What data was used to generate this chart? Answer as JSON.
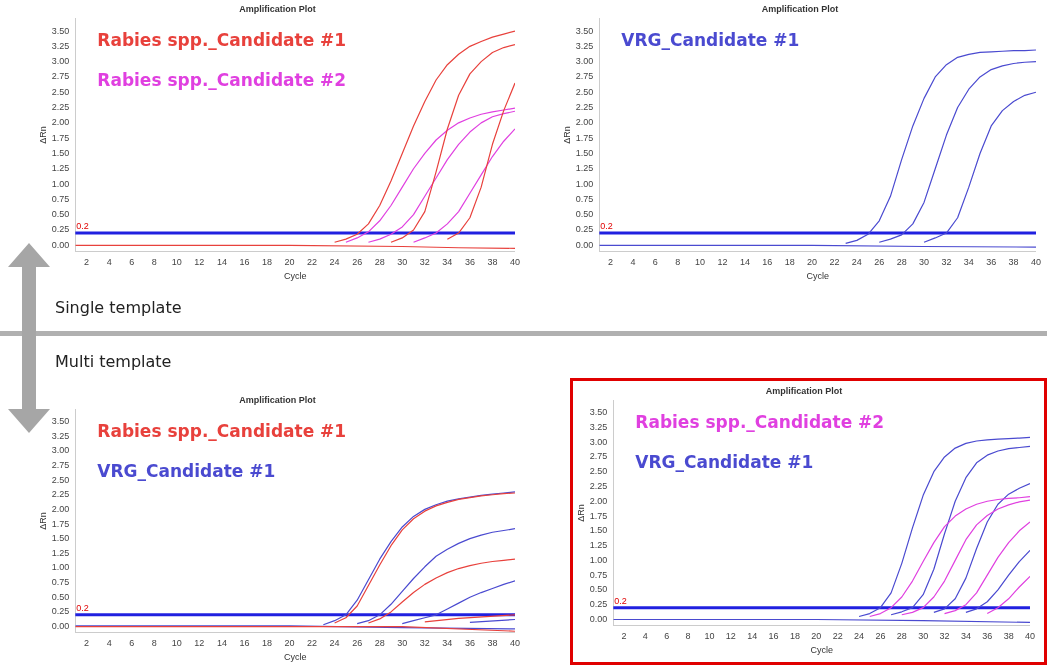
{
  "chart_data": [
    {
      "type": "line",
      "title": "Amplification Plot",
      "xlabel": "Cycle",
      "ylabel": "ΔRn",
      "xlim": [
        1,
        40
      ],
      "ylim": [
        -0.1,
        3.7
      ],
      "xticks": [
        2,
        4,
        6,
        8,
        10,
        12,
        14,
        16,
        18,
        20,
        22,
        24,
        26,
        28,
        30,
        32,
        34,
        36,
        38,
        40
      ],
      "yticks": [
        {
          "value": 0,
          "label": "0.00"
        },
        {
          "value": 0.25,
          "label": "0.25"
        },
        {
          "value": 0.5,
          "label": "0.50"
        },
        {
          "value": 0.75,
          "label": "0.75"
        },
        {
          "value": 1,
          "label": "1.00"
        },
        {
          "value": 1.25,
          "label": "1.25"
        },
        {
          "value": 1.5,
          "label": "1.50"
        },
        {
          "value": 1.75,
          "label": "1.75"
        },
        {
          "value": 2,
          "label": "2.00"
        },
        {
          "value": 2.25,
          "label": "2.25"
        },
        {
          "value": 2.5,
          "label": "2.50"
        },
        {
          "value": 2.75,
          "label": "2.75"
        },
        {
          "value": 3,
          "label": "3.00"
        },
        {
          "value": 3.25,
          "label": "3.25"
        },
        {
          "value": 3.5,
          "label": "3.50"
        }
      ],
      "marker": "none",
      "line_style": "solid",
      "grid": false,
      "annotations": [
        "Single template"
      ],
      "ref_lines": [
        {
          "axis": "y",
          "value": 0.2,
          "label": "0.2",
          "color": "#2020e0"
        }
      ],
      "series": [
        {
          "name": "Rabies spp._Candidate #1",
          "color": "#e8413c",
          "x": [
            24,
            25,
            26,
            27,
            28,
            29,
            30,
            31,
            32,
            33,
            34,
            35,
            36,
            37,
            38,
            39,
            40
          ],
          "values": [
            0.05,
            0.1,
            0.18,
            0.35,
            0.65,
            1.05,
            1.5,
            1.95,
            2.35,
            2.7,
            2.95,
            3.12,
            3.25,
            3.33,
            3.4,
            3.45,
            3.5
          ]
        },
        {
          "color": "#e8413c",
          "x": [
            29,
            30,
            31,
            32,
            33,
            34,
            35,
            36,
            37,
            38,
            39,
            40
          ],
          "values": [
            0.05,
            0.12,
            0.25,
            0.55,
            1.2,
            1.9,
            2.45,
            2.8,
            3.0,
            3.15,
            3.23,
            3.28
          ]
        },
        {
          "color": "#e8413c",
          "x": [
            34,
            35,
            36,
            37,
            38,
            39,
            40
          ],
          "values": [
            0.1,
            0.2,
            0.45,
            0.95,
            1.65,
            2.2,
            2.65
          ]
        },
        {
          "color": "#e8413c",
          "x": [
            1,
            10,
            20,
            30,
            35,
            40
          ],
          "values": [
            0,
            0,
            0,
            -0.02,
            -0.04,
            -0.05
          ]
        },
        {
          "name": "Rabies spp._Candidate #2",
          "color": "#e040e0",
          "x": [
            25,
            26,
            27,
            28,
            29,
            30,
            31,
            32,
            33,
            34,
            35,
            36,
            37,
            38,
            39,
            40
          ],
          "values": [
            0.05,
            0.12,
            0.22,
            0.4,
            0.65,
            0.95,
            1.25,
            1.5,
            1.72,
            1.88,
            2.0,
            2.08,
            2.14,
            2.18,
            2.21,
            2.24
          ]
        },
        {
          "color": "#e040e0",
          "x": [
            27,
            28,
            29,
            30,
            31,
            32,
            33,
            34,
            35,
            36,
            37,
            38,
            39,
            40
          ],
          "values": [
            0.05,
            0.1,
            0.18,
            0.3,
            0.5,
            0.8,
            1.1,
            1.4,
            1.65,
            1.85,
            2.0,
            2.1,
            2.15,
            2.19
          ]
        },
        {
          "color": "#e040e0",
          "x": [
            31,
            32,
            33,
            34,
            35,
            36,
            37,
            38,
            39,
            40
          ],
          "values": [
            0.05,
            0.12,
            0.2,
            0.35,
            0.55,
            0.85,
            1.15,
            1.45,
            1.7,
            1.9
          ]
        }
      ]
    },
    {
      "type": "line",
      "title": "Amplification Plot",
      "xlabel": "Cycle",
      "ylabel": "ΔRn",
      "xlim": [
        1,
        40
      ],
      "ylim": [
        -0.1,
        3.7
      ],
      "xticks": [
        2,
        4,
        6,
        8,
        10,
        12,
        14,
        16,
        18,
        20,
        22,
        24,
        26,
        28,
        30,
        32,
        34,
        36,
        38,
        40
      ],
      "yticks": [
        {
          "value": 0,
          "label": "0.00"
        },
        {
          "value": 0.25,
          "label": "0.25"
        },
        {
          "value": 0.5,
          "label": "0.50"
        },
        {
          "value": 0.75,
          "label": "0.75"
        },
        {
          "value": 1,
          "label": "1.00"
        },
        {
          "value": 1.25,
          "label": "1.25"
        },
        {
          "value": 1.5,
          "label": "1.50"
        },
        {
          "value": 1.75,
          "label": "1.75"
        },
        {
          "value": 2,
          "label": "2.00"
        },
        {
          "value": 2.25,
          "label": "2.25"
        },
        {
          "value": 2.5,
          "label": "2.50"
        },
        {
          "value": 2.75,
          "label": "2.75"
        },
        {
          "value": 3,
          "label": "3.00"
        },
        {
          "value": 3.25,
          "label": "3.25"
        },
        {
          "value": 3.5,
          "label": "3.50"
        }
      ],
      "marker": "none",
      "line_style": "solid",
      "grid": false,
      "ref_lines": [
        {
          "axis": "y",
          "value": 0.2,
          "label": "0.2",
          "color": "#2020e0"
        }
      ],
      "series": [
        {
          "name": "VRG_Candidate #1",
          "color": "#4a4ad0",
          "x": [
            23,
            24,
            25,
            26,
            27,
            28,
            29,
            30,
            31,
            32,
            33,
            34,
            35,
            36,
            37,
            38,
            39,
            40
          ],
          "values": [
            0.03,
            0.08,
            0.18,
            0.4,
            0.8,
            1.4,
            1.95,
            2.4,
            2.75,
            2.95,
            3.07,
            3.12,
            3.15,
            3.16,
            3.17,
            3.18,
            3.18,
            3.19
          ]
        },
        {
          "color": "#4a4ad0",
          "x": [
            26,
            27,
            28,
            29,
            30,
            31,
            32,
            33,
            34,
            35,
            36,
            37,
            38,
            39,
            40
          ],
          "values": [
            0.05,
            0.1,
            0.17,
            0.35,
            0.7,
            1.25,
            1.8,
            2.25,
            2.55,
            2.75,
            2.87,
            2.93,
            2.97,
            2.99,
            3.0
          ]
        },
        {
          "color": "#4a4ad0",
          "x": [
            30,
            31,
            32,
            33,
            34,
            35,
            36,
            37,
            38,
            39,
            40
          ],
          "values": [
            0.05,
            0.12,
            0.2,
            0.45,
            0.95,
            1.5,
            1.95,
            2.2,
            2.35,
            2.45,
            2.5
          ]
        },
        {
          "color": "#4a4ad0",
          "x": [
            1,
            10,
            20,
            30,
            40
          ],
          "values": [
            0,
            0,
            0,
            -0.02,
            -0.03
          ]
        }
      ]
    },
    {
      "type": "line",
      "title": "Amplification Plot",
      "xlabel": "Cycle",
      "ylabel": "ΔRn",
      "xlim": [
        1,
        40
      ],
      "ylim": [
        -0.1,
        3.7
      ],
      "xticks": [
        2,
        4,
        6,
        8,
        10,
        12,
        14,
        16,
        18,
        20,
        22,
        24,
        26,
        28,
        30,
        32,
        34,
        36,
        38,
        40
      ],
      "yticks": [
        {
          "value": 0,
          "label": "0.00"
        },
        {
          "value": 0.25,
          "label": "0.25"
        },
        {
          "value": 0.5,
          "label": "0.50"
        },
        {
          "value": 0.75,
          "label": "0.75"
        },
        {
          "value": 1,
          "label": "1.00"
        },
        {
          "value": 1.25,
          "label": "1.25"
        },
        {
          "value": 1.5,
          "label": "1.50"
        },
        {
          "value": 1.75,
          "label": "1.75"
        },
        {
          "value": 2,
          "label": "2.00"
        },
        {
          "value": 2.25,
          "label": "2.25"
        },
        {
          "value": 2.5,
          "label": "2.50"
        },
        {
          "value": 2.75,
          "label": "2.75"
        },
        {
          "value": 3,
          "label": "3.00"
        },
        {
          "value": 3.25,
          "label": "3.25"
        },
        {
          "value": 3.5,
          "label": "3.50"
        }
      ],
      "marker": "none",
      "line_style": "solid",
      "grid": false,
      "annotations": [
        "Multi template"
      ],
      "ref_lines": [
        {
          "axis": "y",
          "value": 0.2,
          "label": "0.2",
          "color": "#2020e0"
        }
      ],
      "series": [
        {
          "name": "Rabies spp._Candidate #1",
          "color": "#e8413c",
          "x": [
            24,
            25,
            26,
            27,
            28,
            29,
            30,
            31,
            32,
            33,
            34,
            35,
            36,
            37,
            38,
            39,
            40
          ],
          "values": [
            0.06,
            0.15,
            0.35,
            0.7,
            1.05,
            1.38,
            1.65,
            1.84,
            1.97,
            2.06,
            2.12,
            2.17,
            2.2,
            2.23,
            2.25,
            2.27,
            2.28
          ]
        },
        {
          "color": "#e8413c",
          "x": [
            27,
            28,
            29,
            30,
            31,
            32,
            33,
            34,
            35,
            36,
            37,
            38,
            39,
            40
          ],
          "values": [
            0.06,
            0.13,
            0.25,
            0.42,
            0.58,
            0.72,
            0.83,
            0.92,
            0.99,
            1.04,
            1.08,
            1.11,
            1.13,
            1.15
          ]
        },
        {
          "color": "#e8413c",
          "x": [
            32,
            35,
            40
          ],
          "values": [
            0.08,
            0.14,
            0.2
          ]
        },
        {
          "color": "#e8413c",
          "x": [
            1,
            10,
            20,
            30,
            40
          ],
          "values": [
            0,
            0,
            0,
            0,
            -0.08
          ]
        },
        {
          "name": "VRG_Candidate #1",
          "color": "#4a4ad0",
          "x": [
            23,
            24,
            25,
            26,
            27,
            28,
            29,
            30,
            31,
            32,
            33,
            34,
            35,
            36,
            37,
            38,
            39,
            40
          ],
          "values": [
            0.03,
            0.1,
            0.2,
            0.45,
            0.8,
            1.15,
            1.45,
            1.7,
            1.88,
            2.0,
            2.08,
            2.14,
            2.18,
            2.21,
            2.24,
            2.26,
            2.28,
            2.3
          ]
        },
        {
          "color": "#4a4ad0",
          "x": [
            26,
            27,
            28,
            29,
            30,
            31,
            32,
            33,
            34,
            35,
            36,
            37,
            38,
            39,
            40
          ],
          "values": [
            0.05,
            0.1,
            0.2,
            0.38,
            0.6,
            0.82,
            1.02,
            1.2,
            1.32,
            1.42,
            1.5,
            1.56,
            1.61,
            1.64,
            1.67
          ]
        },
        {
          "color": "#4a4ad0",
          "x": [
            30,
            31,
            32,
            33,
            34,
            35,
            36,
            37,
            38,
            39,
            40
          ],
          "values": [
            0.05,
            0.1,
            0.15,
            0.2,
            0.3,
            0.4,
            0.5,
            0.58,
            0.65,
            0.72,
            0.78
          ]
        },
        {
          "color": "#4a4ad0",
          "x": [
            36,
            40
          ],
          "values": [
            0.07,
            0.12
          ]
        },
        {
          "color": "#4a4ad0",
          "x": [
            1,
            10,
            20,
            30,
            40
          ],
          "values": [
            0.01,
            0.01,
            0.01,
            -0.02,
            -0.04
          ]
        }
      ]
    },
    {
      "type": "line",
      "title": "Amplification Plot",
      "xlabel": "Cycle",
      "ylabel": "ΔRn",
      "xlim": [
        1,
        40
      ],
      "ylim": [
        -0.1,
        3.7
      ],
      "xticks": [
        2,
        4,
        6,
        8,
        10,
        12,
        14,
        16,
        18,
        20,
        22,
        24,
        26,
        28,
        30,
        32,
        34,
        36,
        38,
        40
      ],
      "yticks": [
        {
          "value": 0,
          "label": "0.00"
        },
        {
          "value": 0.25,
          "label": "0.25"
        },
        {
          "value": 0.5,
          "label": "0.50"
        },
        {
          "value": 0.75,
          "label": "0.75"
        },
        {
          "value": 1,
          "label": "1.00"
        },
        {
          "value": 1.25,
          "label": "1.25"
        },
        {
          "value": 1.5,
          "label": "1.50"
        },
        {
          "value": 1.75,
          "label": "1.75"
        },
        {
          "value": 2,
          "label": "2.00"
        },
        {
          "value": 2.25,
          "label": "2.25"
        },
        {
          "value": 2.5,
          "label": "2.50"
        },
        {
          "value": 2.75,
          "label": "2.75"
        },
        {
          "value": 3,
          "label": "3.00"
        },
        {
          "value": 3.25,
          "label": "3.25"
        },
        {
          "value": 3.5,
          "label": "3.50"
        }
      ],
      "marker": "none",
      "line_style": "solid",
      "grid": false,
      "ref_lines": [
        {
          "axis": "y",
          "value": 0.2,
          "label": "0.2",
          "color": "#2020e0"
        }
      ],
      "series": [
        {
          "name": "Rabies spp._Candidate #2",
          "color": "#e040e0",
          "x": [
            25,
            26,
            27,
            28,
            29,
            30,
            31,
            32,
            33,
            34,
            35,
            36,
            37,
            38,
            39,
            40
          ],
          "values": [
            0.05,
            0.1,
            0.2,
            0.38,
            0.65,
            0.98,
            1.3,
            1.57,
            1.75,
            1.87,
            1.95,
            2.0,
            2.03,
            2.05,
            2.06,
            2.08
          ]
        },
        {
          "color": "#e040e0",
          "x": [
            28,
            29,
            30,
            31,
            32,
            33,
            34,
            35,
            36,
            37,
            38,
            39,
            40
          ],
          "values": [
            0.08,
            0.12,
            0.2,
            0.38,
            0.65,
            1.0,
            1.35,
            1.6,
            1.76,
            1.87,
            1.94,
            1.99,
            2.02
          ]
        },
        {
          "color": "#e040e0",
          "x": [
            32,
            33,
            34,
            35,
            36,
            37,
            38,
            39,
            40
          ],
          "values": [
            0.1,
            0.15,
            0.25,
            0.45,
            0.75,
            1.05,
            1.3,
            1.5,
            1.65
          ]
        },
        {
          "color": "#e040e0",
          "x": [
            36,
            37,
            38,
            39,
            40
          ],
          "values": [
            0.1,
            0.2,
            0.35,
            0.55,
            0.73
          ]
        },
        {
          "name": "VRG_Candidate #1",
          "color": "#4a4ad0",
          "x": [
            24,
            25,
            26,
            27,
            28,
            29,
            30,
            31,
            32,
            33,
            34,
            35,
            36,
            37,
            38,
            39,
            40
          ],
          "values": [
            0.05,
            0.1,
            0.2,
            0.45,
            0.95,
            1.55,
            2.1,
            2.5,
            2.75,
            2.9,
            2.98,
            3.02,
            3.04,
            3.05,
            3.06,
            3.07,
            3.08
          ]
        },
        {
          "color": "#4a4ad0",
          "x": [
            27,
            28,
            29,
            30,
            31,
            32,
            33,
            34,
            35,
            36,
            37,
            38,
            39,
            40
          ],
          "values": [
            0.08,
            0.13,
            0.2,
            0.42,
            0.85,
            1.45,
            2.0,
            2.4,
            2.65,
            2.78,
            2.85,
            2.89,
            2.91,
            2.93
          ]
        },
        {
          "color": "#4a4ad0",
          "x": [
            31,
            32,
            33,
            34,
            35,
            36,
            37,
            38,
            39,
            40
          ],
          "values": [
            0.12,
            0.18,
            0.35,
            0.7,
            1.2,
            1.65,
            1.95,
            2.12,
            2.22,
            2.3
          ]
        },
        {
          "color": "#4a4ad0",
          "x": [
            34,
            35,
            36,
            37,
            38,
            39,
            40
          ],
          "values": [
            0.12,
            0.18,
            0.3,
            0.5,
            0.75,
            0.98,
            1.17
          ]
        },
        {
          "color": "#4a4ad0",
          "x": [
            1,
            10,
            20,
            30,
            40
          ],
          "values": [
            0,
            0,
            0,
            -0.02,
            -0.05
          ]
        }
      ]
    }
  ]
}
